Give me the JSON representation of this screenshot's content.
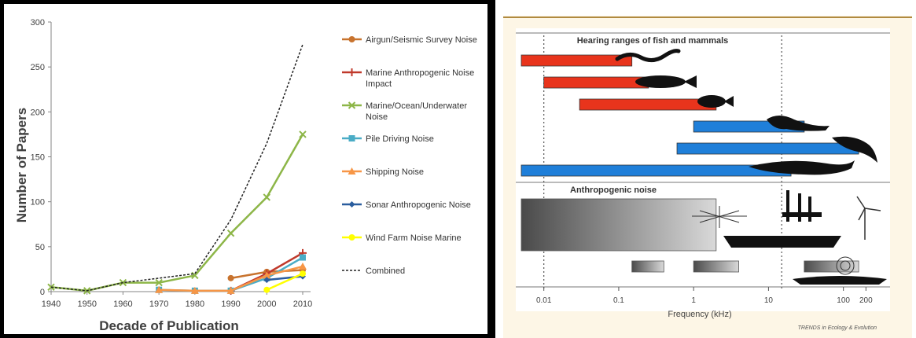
{
  "chart_data": [
    {
      "type": "line",
      "title": "",
      "xlabel": "Decade of Publication",
      "ylabel": "Number of Papers",
      "x": [
        1940,
        1950,
        1960,
        1970,
        1980,
        1990,
        2000,
        2010
      ],
      "xlim": [
        1940,
        2010
      ],
      "ylim": [
        0,
        300
      ],
      "y_ticks": [
        0,
        50,
        100,
        150,
        200,
        250,
        300
      ],
      "grid": false,
      "legend_position": "right",
      "series": [
        {
          "name": "Airgun/Seismic Survey Noise",
          "color": "#c8732e",
          "marker": "circle",
          "points": [
            [
              1990,
              15
            ],
            [
              2000,
              22
            ],
            [
              2010,
              24
            ]
          ]
        },
        {
          "name": "Marine Anthropogenic Noise Impact",
          "color": "#c0392b",
          "marker": "plus",
          "points": [
            [
              1990,
              1
            ],
            [
              2000,
              20
            ],
            [
              2010,
              43
            ]
          ]
        },
        {
          "name": "Marine/Ocean/Underwater Noise",
          "color": "#8db648",
          "marker": "x",
          "points": [
            [
              1940,
              5
            ],
            [
              1950,
              1
            ],
            [
              1960,
              10
            ],
            [
              1970,
              10
            ],
            [
              1980,
              18
            ],
            [
              1990,
              65
            ],
            [
              2000,
              105
            ],
            [
              2010,
              175
            ]
          ]
        },
        {
          "name": "Pile Driving Noise",
          "color": "#4aacc6",
          "marker": "square",
          "points": [
            [
              1970,
              2
            ],
            [
              1980,
              1
            ],
            [
              1990,
              1
            ],
            [
              2000,
              15
            ],
            [
              2010,
              38
            ]
          ]
        },
        {
          "name": "Shipping Noise",
          "color": "#f79646",
          "marker": "triangle",
          "points": [
            [
              1970,
              2
            ],
            [
              1980,
              1
            ],
            [
              1990,
              1
            ],
            [
              2000,
              18
            ],
            [
              2010,
              28
            ]
          ]
        },
        {
          "name": "Sonar Anthropogenic Noise",
          "color": "#2a5d9e",
          "marker": "diamond",
          "points": [
            [
              2000,
              13
            ],
            [
              2010,
              17
            ]
          ]
        },
        {
          "name": "Wind Farm Noise Marine",
          "color": "#ffff00",
          "marker": "circle",
          "points": [
            [
              2000,
              2
            ],
            [
              2010,
              20
            ]
          ]
        },
        {
          "name": "Combined",
          "color": "#222222",
          "marker": "none",
          "dash": true,
          "points": [
            [
              1940,
              5
            ],
            [
              1950,
              1
            ],
            [
              1960,
              10
            ],
            [
              1970,
              15
            ],
            [
              1980,
              20
            ],
            [
              1990,
              80
            ],
            [
              2000,
              165
            ],
            [
              2010,
              275
            ]
          ]
        }
      ]
    },
    {
      "type": "bar",
      "orientation": "horizontal-range",
      "scale": "log",
      "title": "Hearing ranges of fish and mammals",
      "section2_title": "Anthropogenic noise",
      "xlabel": "Frequency (kHz)",
      "x_ticks": [
        "0.01",
        "0.1",
        "1",
        "10",
        "100",
        "200"
      ],
      "x_tick_values": [
        0.01,
        0.1,
        1,
        10,
        100,
        200
      ],
      "xlim": [
        0.005,
        400
      ],
      "credit": "TRENDS in Ecology & Evolution",
      "hearing_ranges": [
        {
          "group": "fish",
          "color": "#e8341c",
          "range": [
            0.005,
            0.15
          ]
        },
        {
          "group": "fish",
          "color": "#e8341c",
          "range": [
            0.01,
            0.25
          ]
        },
        {
          "group": "fish",
          "color": "#e8341c",
          "range": [
            0.03,
            2
          ]
        },
        {
          "group": "mammal",
          "color": "#1f7fd9",
          "range": [
            1,
            30
          ]
        },
        {
          "group": "mammal",
          "color": "#1f7fd9",
          "range": [
            0.6,
            160
          ]
        },
        {
          "group": "mammal",
          "color": "#1f7fd9",
          "range": [
            0.005,
            20
          ]
        }
      ],
      "noise_ranges": [
        {
          "range": [
            0.005,
            2
          ]
        },
        {
          "range": [
            0.15,
            0.4
          ]
        },
        {
          "range": [
            1,
            4
          ]
        },
        {
          "range": [
            30,
            160
          ]
        }
      ],
      "dotted_lines": [
        0.01,
        15
      ]
    }
  ]
}
